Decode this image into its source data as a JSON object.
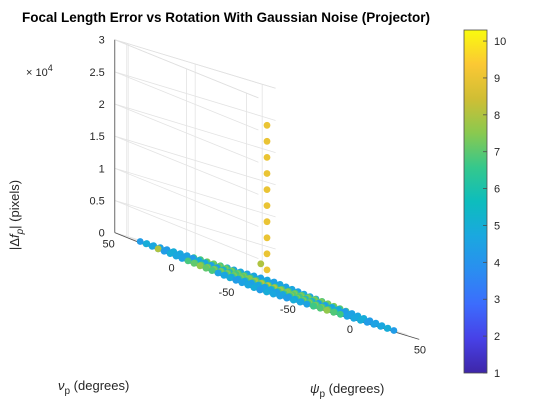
{
  "chart_data": {
    "type": "scatter3d",
    "title": "Focal Length Error vs Rotation With Gaussian Noise (Projector)",
    "xlabel_base": "ψ",
    "xlabel_sub": "p",
    "xlabel_units": " (degrees)",
    "ylabel_base": "ν",
    "ylabel_sub": "p",
    "ylabel_units": " (degrees)",
    "zlabel_prefix": "|Δ",
    "zlabel_var": "f",
    "zlabel_sub": "p",
    "zlabel_suffix": "| (pixels)",
    "z_exponent_base": "× 10",
    "z_exponent_power": "4",
    "xlim": [
      -60,
      60
    ],
    "ylim": [
      -60,
      60
    ],
    "zlim": [
      0,
      30000
    ],
    "xticks": [
      -50,
      0,
      50
    ],
    "yticks": [
      -50,
      0,
      50
    ],
    "zticks": [
      0,
      0.5,
      1,
      1.5,
      2,
      2.5,
      3
    ],
    "ztick_labels": [
      "0",
      "0.5",
      "1",
      "1.5",
      "2",
      "2.5",
      "3"
    ],
    "grid": true,
    "colorbar": {
      "colormap": "parula",
      "range": [
        1,
        10.3
      ],
      "ticks": [
        1,
        2,
        3,
        4,
        5,
        6,
        7,
        8,
        9,
        10
      ],
      "tick_labels": [
        "1",
        "2",
        "3",
        "4",
        "5",
        "6",
        "7",
        "8",
        "9",
        "10"
      ]
    },
    "grid_points": {
      "x_range": [
        -50,
        50
      ],
      "y_range": [
        -50,
        50
      ],
      "step": 5,
      "z_value": 0
    },
    "spike": {
      "x": 0,
      "y": 0,
      "z": [
        2500,
        5000,
        7500,
        10000,
        12500,
        15000,
        17500,
        20000,
        22500,
        25000
      ],
      "color_value": 9
    },
    "outlier_points": [
      {
        "x": 40,
        "y": 50,
        "z": 2200,
        "color_value": 8
      },
      {
        "x": -50,
        "y": 35,
        "z": 0,
        "color_value": 8
      }
    ]
  }
}
